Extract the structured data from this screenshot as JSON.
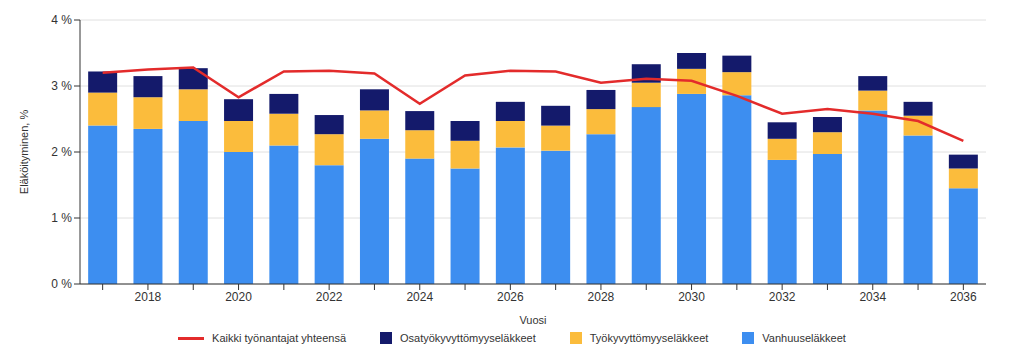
{
  "chart_data": {
    "type": "bar",
    "stacked": true,
    "grid": true,
    "legend": "bottom",
    "y_label": "Eläköityminen, %",
    "x_label": "Vuosi",
    "categories": [
      null,
      "2018",
      null,
      "2020",
      null,
      "2022",
      null,
      "2024",
      null,
      "2026",
      null,
      "2028",
      null,
      "2030",
      null,
      "2032",
      null,
      "2034",
      null,
      "2036"
    ],
    "ylim": [
      0,
      4
    ],
    "yticks": [
      {
        "value": 0,
        "label": "0 %"
      },
      {
        "value": 1,
        "label": "1 %"
      },
      {
        "value": 2,
        "label": "2 %"
      },
      {
        "value": 3,
        "label": "3 %"
      },
      {
        "value": 4,
        "label": "4 %"
      }
    ],
    "series": [
      {
        "name": "Kaikki työnantajat yhteensä",
        "type": "line",
        "marker": "none",
        "color": "#e32b2b",
        "values": [
          3.2,
          3.25,
          3.28,
          2.83,
          3.22,
          3.23,
          3.19,
          2.73,
          3.16,
          3.23,
          3.22,
          3.05,
          3.11,
          3.08,
          2.85,
          2.58,
          2.65,
          2.58,
          2.47,
          2.17
        ]
      },
      {
        "name": "Osatyökyvyttömyyseläkkeet",
        "type": "bar",
        "color": "#141a6b",
        "values": [
          0.32,
          0.32,
          0.32,
          0.33,
          0.3,
          0.29,
          0.32,
          0.29,
          0.3,
          0.29,
          0.3,
          0.29,
          0.28,
          0.24,
          0.25,
          0.25,
          0.23,
          0.22,
          0.21,
          0.21
        ]
      },
      {
        "name": "Työkyvyttömyyseläkkeet",
        "type": "bar",
        "color": "#fbbc3c",
        "values": [
          0.5,
          0.48,
          0.48,
          0.47,
          0.48,
          0.47,
          0.43,
          0.43,
          0.42,
          0.4,
          0.38,
          0.38,
          0.37,
          0.38,
          0.35,
          0.32,
          0.33,
          0.3,
          0.3,
          0.3
        ]
      },
      {
        "name": "Vanhuuseläkkeet",
        "type": "bar",
        "color": "#3d8ef0",
        "values": [
          2.4,
          2.35,
          2.47,
          2.0,
          2.1,
          1.8,
          2.2,
          1.9,
          1.75,
          2.07,
          2.02,
          2.27,
          2.68,
          2.88,
          2.86,
          1.88,
          1.97,
          2.63,
          2.25,
          1.45
        ]
      }
    ]
  }
}
